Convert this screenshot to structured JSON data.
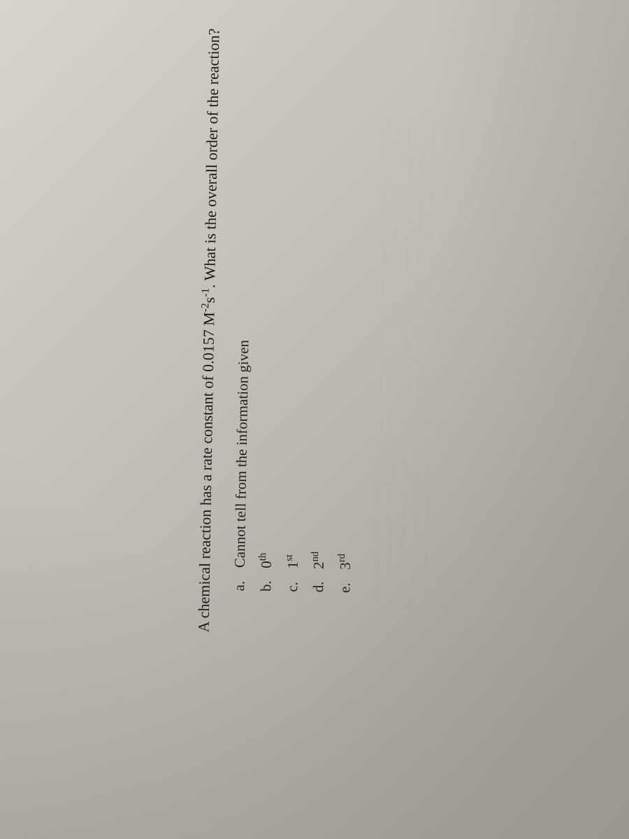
{
  "question": {
    "text_part1": "A chemical reaction has a rate constant of 0.0157 M",
    "exponent1": "-2",
    "unit_s": "s",
    "exponent2": "-1",
    "text_part2": ". What is the overall order of the reaction?"
  },
  "options": [
    {
      "letter": "a.",
      "text": "Cannot tell from the information given"
    },
    {
      "letter": "b.",
      "text_prefix": "0",
      "ordinal": "th"
    },
    {
      "letter": "c.",
      "text_prefix": "1",
      "ordinal": "st"
    },
    {
      "letter": "d.",
      "text_prefix": "2",
      "ordinal": "nd"
    },
    {
      "letter": "e.",
      "text_prefix": "3",
      "ordinal": "rd"
    }
  ],
  "styling": {
    "background_gradient_start": "#d8d4cc",
    "background_gradient_end": "#a8a49c",
    "text_color": "#1a1a1a",
    "font_family": "Times New Roman",
    "question_fontsize": 22,
    "option_fontsize": 21,
    "rotation_deg": -89
  }
}
